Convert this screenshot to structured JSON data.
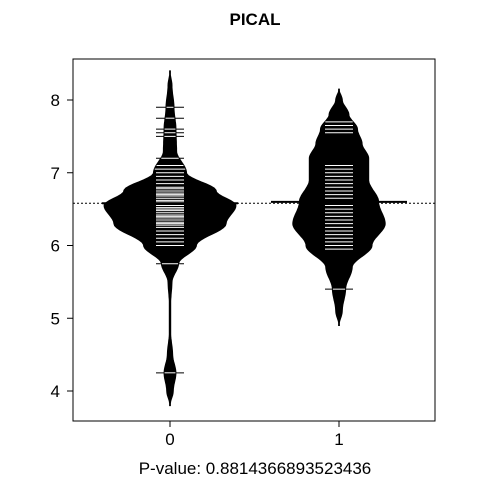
{
  "chart_data": {
    "type": "beanplot",
    "title": "PICAL",
    "xlabel": "P-value: 0.8814366893523436",
    "ylabel": "",
    "categories": [
      "0",
      "1"
    ],
    "y_ticks": [
      "4",
      "5",
      "6",
      "7",
      "8"
    ],
    "ylim": [
      3.6,
      8.6
    ],
    "overall_mean": 6.58,
    "beans": [
      {
        "name": "0",
        "mean": 6.58,
        "density_range": [
          3.8,
          8.4
        ],
        "density": [
          [
            3.8,
            0.0
          ],
          [
            4.0,
            0.05
          ],
          [
            4.25,
            0.09
          ],
          [
            4.5,
            0.04
          ],
          [
            4.8,
            0.01
          ],
          [
            5.2,
            0.01
          ],
          [
            5.5,
            0.03
          ],
          [
            5.75,
            0.13
          ],
          [
            6.0,
            0.4
          ],
          [
            6.3,
            0.85
          ],
          [
            6.55,
            1.0
          ],
          [
            6.75,
            0.7
          ],
          [
            7.0,
            0.25
          ],
          [
            7.3,
            0.1
          ],
          [
            7.6,
            0.09
          ],
          [
            7.9,
            0.06
          ],
          [
            8.2,
            0.03
          ],
          [
            8.4,
            0.0
          ]
        ],
        "observations": [
          4.25,
          5.75,
          6.0,
          6.05,
          6.1,
          6.15,
          6.2,
          6.25,
          6.28,
          6.3,
          6.32,
          6.35,
          6.38,
          6.4,
          6.42,
          6.45,
          6.48,
          6.5,
          6.52,
          6.55,
          6.58,
          6.6,
          6.62,
          6.65,
          6.68,
          6.7,
          6.72,
          6.75,
          6.78,
          6.8,
          6.85,
          6.9,
          6.95,
          7.0,
          7.05,
          7.1,
          7.2,
          7.5,
          7.55,
          7.6,
          7.75,
          7.9
        ]
      },
      {
        "name": "1",
        "mean": 6.6,
        "density_range": [
          4.9,
          8.15
        ],
        "density": [
          [
            4.9,
            0.0
          ],
          [
            5.1,
            0.05
          ],
          [
            5.4,
            0.1
          ],
          [
            5.7,
            0.2
          ],
          [
            6.0,
            0.5
          ],
          [
            6.3,
            0.7
          ],
          [
            6.6,
            0.6
          ],
          [
            6.9,
            0.45
          ],
          [
            7.2,
            0.45
          ],
          [
            7.4,
            0.35
          ],
          [
            7.6,
            0.28
          ],
          [
            7.8,
            0.15
          ],
          [
            8.0,
            0.05
          ],
          [
            8.15,
            0.0
          ]
        ],
        "observations": [
          5.4,
          5.95,
          6.0,
          6.05,
          6.1,
          6.15,
          6.2,
          6.25,
          6.3,
          6.35,
          6.4,
          6.45,
          6.5,
          6.55,
          6.6,
          6.65,
          6.7,
          6.75,
          6.8,
          6.85,
          6.9,
          6.95,
          7.0,
          7.05,
          7.1,
          7.55,
          7.6,
          7.65,
          7.7
        ]
      }
    ]
  }
}
